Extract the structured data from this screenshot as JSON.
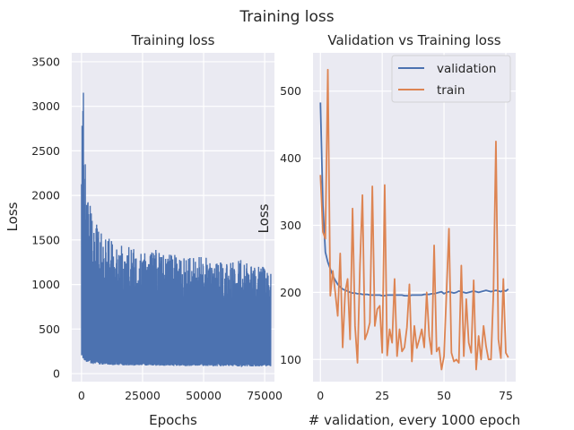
{
  "figure": {
    "suptitle": "Training loss"
  },
  "chart_data": [
    {
      "type": "line",
      "title": "Training loss",
      "xlabel": "Epochs",
      "ylabel": "Loss",
      "xlim": [
        -4000,
        79000
      ],
      "ylim": [
        -90,
        3600
      ],
      "xticks": [
        0,
        25000,
        50000,
        75000
      ],
      "yticks": [
        0,
        500,
        1000,
        1500,
        2000,
        2500,
        3000,
        3500
      ],
      "grid": true,
      "series": [
        {
          "color": "#4c72b0",
          "envelope_x": [
            0,
            600,
            1200,
            2000,
            3000,
            4500,
            6000,
            8000,
            10000,
            13000,
            16000,
            20000,
            25000,
            30000,
            35000,
            40000,
            45000,
            50000,
            55000,
            60000,
            65000,
            70000,
            75000,
            77500
          ],
          "envelope_upper": [
            2600,
            3500,
            2600,
            2200,
            2100,
            1800,
            1700,
            1650,
            1550,
            1500,
            1450,
            1420,
            1380,
            1400,
            1350,
            1350,
            1300,
            1320,
            1300,
            1250,
            1300,
            1200,
            1200,
            1150
          ],
          "envelope_lower": [
            200,
            160,
            140,
            130,
            120,
            110,
            105,
            100,
            100,
            95,
            95,
            90,
            90,
            88,
            88,
            85,
            85,
            85,
            82,
            82,
            80,
            80,
            80,
            78
          ]
        }
      ]
    },
    {
      "type": "line",
      "title": "Validation vs  Training loss",
      "xlabel": "# validation, every 1000 epoch",
      "ylabel": "Loss",
      "xlim": [
        -3,
        79
      ],
      "ylim": [
        67,
        557
      ],
      "xticks": [
        0,
        25,
        50,
        75
      ],
      "yticks": [
        100,
        200,
        300,
        400,
        500
      ],
      "grid": true,
      "legend": "top-right",
      "series": [
        {
          "name": "validation",
          "color": "#4c72b0",
          "x": [
            0,
            1,
            2,
            3,
            4,
            5,
            6,
            7,
            8,
            9,
            10,
            11,
            12,
            13,
            14,
            15,
            16,
            17,
            18,
            19,
            20,
            21,
            22,
            23,
            24,
            25,
            26,
            27,
            28,
            29,
            30,
            31,
            32,
            33,
            34,
            35,
            36,
            37,
            38,
            39,
            40,
            41,
            42,
            43,
            44,
            45,
            46,
            47,
            48,
            49,
            50,
            51,
            52,
            53,
            54,
            55,
            56,
            57,
            58,
            59,
            60,
            61,
            62,
            63,
            64,
            65,
            66,
            67,
            68,
            69,
            70,
            71,
            72,
            73,
            74,
            75,
            76
          ],
          "values": [
            483,
            330,
            260,
            245,
            235,
            225,
            218,
            212,
            208,
            205,
            203,
            202,
            200,
            199,
            199,
            198,
            198,
            197,
            197,
            197,
            196,
            196,
            196,
            196,
            196,
            195,
            195,
            196,
            196,
            196,
            196,
            196,
            196,
            196,
            195,
            195,
            195,
            196,
            196,
            196,
            196,
            196,
            197,
            197,
            197,
            198,
            198,
            199,
            200,
            201,
            198,
            200,
            201,
            200,
            199,
            200,
            202,
            201,
            200,
            199,
            200,
            201,
            202,
            201,
            200,
            201,
            202,
            203,
            202,
            201,
            202,
            203,
            202,
            201,
            203,
            202,
            205
          ]
        },
        {
          "name": "train",
          "color": "#dd8452",
          "x": [
            0,
            1,
            2,
            3,
            4,
            5,
            6,
            7,
            8,
            9,
            10,
            11,
            12,
            13,
            14,
            15,
            16,
            17,
            18,
            19,
            20,
            21,
            22,
            23,
            24,
            25,
            26,
            27,
            28,
            29,
            30,
            31,
            32,
            33,
            34,
            35,
            36,
            37,
            38,
            39,
            40,
            41,
            42,
            43,
            44,
            45,
            46,
            47,
            48,
            49,
            50,
            51,
            52,
            53,
            54,
            55,
            56,
            57,
            58,
            59,
            60,
            61,
            62,
            63,
            64,
            65,
            66,
            67,
            68,
            69,
            70,
            71,
            72,
            73,
            74,
            75,
            76
          ],
          "values": [
            375,
            290,
            280,
            532,
            195,
            232,
            200,
            165,
            258,
            118,
            200,
            220,
            130,
            325,
            150,
            95,
            240,
            345,
            130,
            140,
            155,
            358,
            150,
            175,
            180,
            110,
            360,
            106,
            145,
            125,
            220,
            105,
            145,
            112,
            118,
            148,
            212,
            97,
            150,
            117,
            130,
            145,
            118,
            200,
            135,
            108,
            270,
            112,
            118,
            85,
            105,
            200,
            295,
            110,
            97,
            100,
            95,
            240,
            105,
            190,
            125,
            110,
            218,
            85,
            135,
            100,
            150,
            120,
            100,
            100,
            200,
            425,
            130,
            102,
            220,
            110,
            103
          ]
        }
      ]
    }
  ]
}
